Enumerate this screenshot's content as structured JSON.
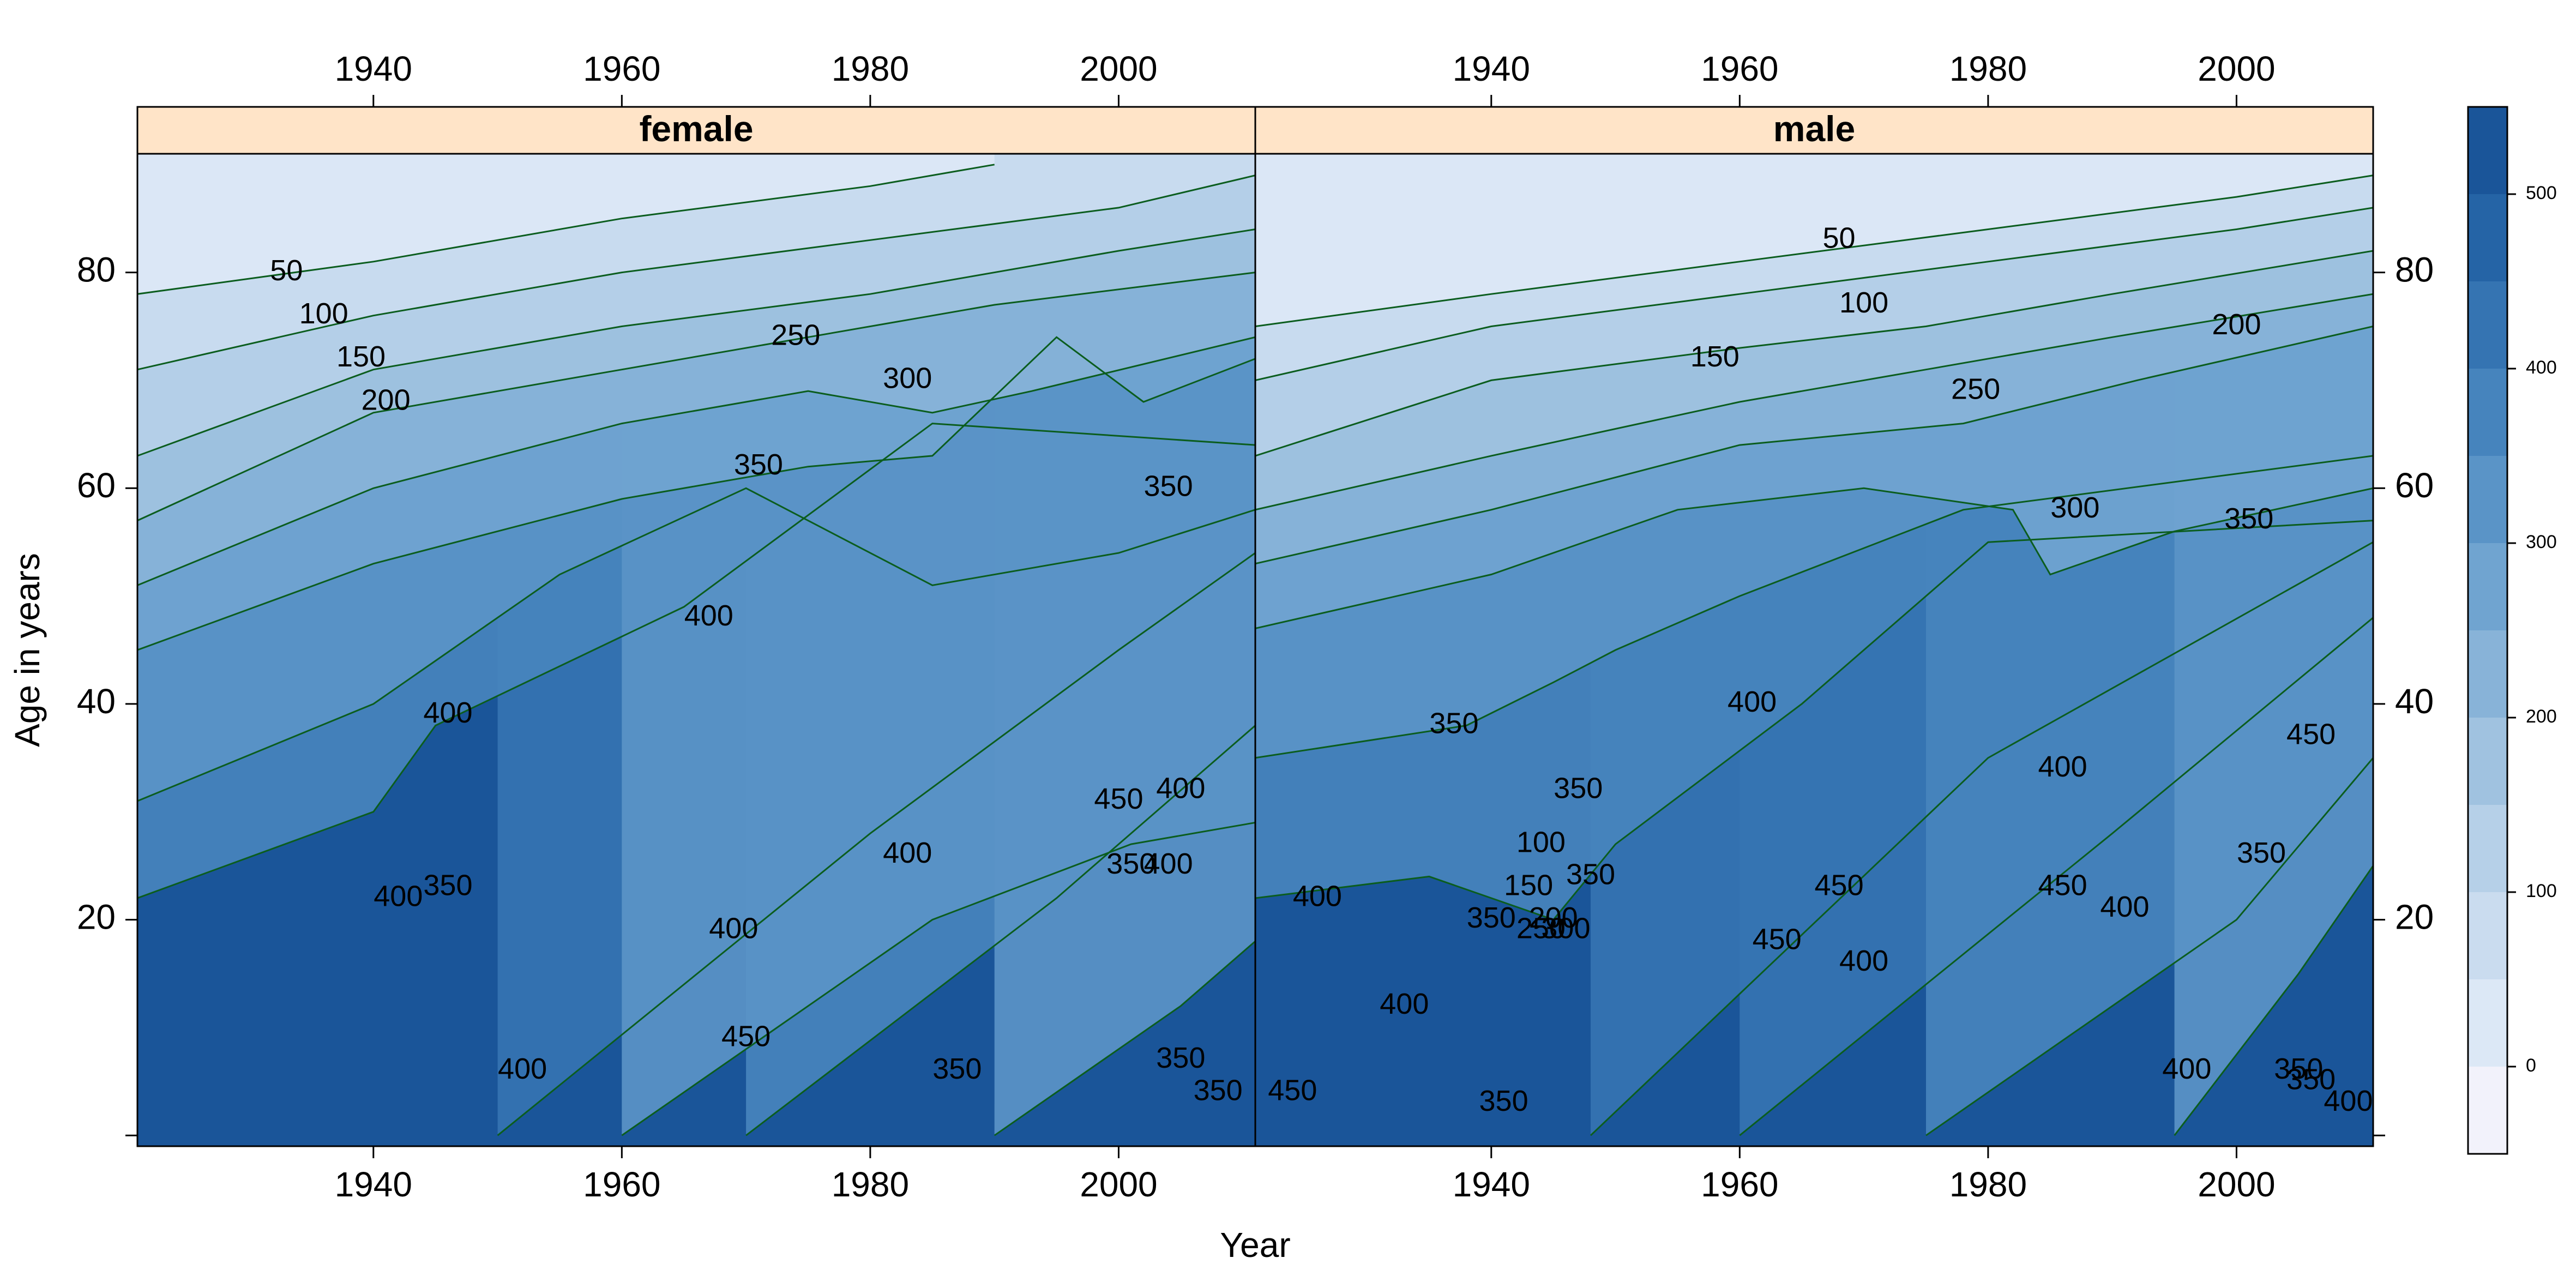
{
  "chart_data": {
    "type": "contour",
    "xlabel": "Year",
    "ylabel": "Age in years",
    "xlim": [
      1921,
      2011
    ],
    "ylim": [
      -1,
      91
    ],
    "x_ticks": [
      "1940",
      "1960",
      "1980",
      "2000"
    ],
    "x_tick_values": [
      1940,
      1960,
      1980,
      2000
    ],
    "y_ticks": [
      "20",
      "40",
      "60",
      "80"
    ],
    "y_tick_values": [
      20,
      40,
      60,
      80
    ],
    "colorbar": {
      "range": [
        -50,
        550
      ],
      "ticks": [
        "0",
        "100",
        "200",
        "300",
        "400",
        "500"
      ],
      "tick_values": [
        0,
        100,
        200,
        300,
        400,
        500
      ],
      "levels": [
        -50,
        0,
        50,
        100,
        150,
        200,
        250,
        300,
        350,
        400,
        450,
        500,
        550
      ],
      "colors": [
        "#f2f2fb",
        "#dce8f6",
        "#cadcef",
        "#b6d0e8",
        "#a0c2e0",
        "#88b3d8",
        "#70a4d0",
        "#5a94c7",
        "#4684bd",
        "#3574b2",
        "#2564a6",
        "#1a5599"
      ]
    },
    "panels": [
      {
        "strip": "female",
        "contour_lines": [
          {
            "level": 50,
            "points": [
              [
                1921,
                78
              ],
              [
                1940,
                81
              ],
              [
                1960,
                85
              ],
              [
                1980,
                88
              ],
              [
                1990,
                90
              ]
            ]
          },
          {
            "level": 100,
            "points": [
              [
                1921,
                71
              ],
              [
                1940,
                76
              ],
              [
                1960,
                80
              ],
              [
                1980,
                83
              ],
              [
                2000,
                86
              ],
              [
                2011,
                89
              ]
            ]
          },
          {
            "level": 150,
            "points": [
              [
                1921,
                63
              ],
              [
                1940,
                71
              ],
              [
                1960,
                75
              ],
              [
                1980,
                78
              ],
              [
                2000,
                82
              ],
              [
                2011,
                84
              ]
            ]
          },
          {
            "level": 200,
            "points": [
              [
                1921,
                57
              ],
              [
                1940,
                67
              ],
              [
                1960,
                71
              ],
              [
                1975,
                74
              ],
              [
                1990,
                77
              ],
              [
                2011,
                80
              ]
            ]
          },
          {
            "level": 250,
            "points": [
              [
                1921,
                51
              ],
              [
                1940,
                60
              ],
              [
                1960,
                66
              ],
              [
                1975,
                69
              ],
              [
                1985,
                67
              ],
              [
                1993,
                69
              ],
              [
                2011,
                74
              ]
            ]
          },
          {
            "level": 300,
            "points": [
              [
                1921,
                45
              ],
              [
                1940,
                53
              ],
              [
                1960,
                59
              ],
              [
                1975,
                62
              ],
              [
                1985,
                63
              ],
              [
                1995,
                74
              ],
              [
                2002,
                68
              ],
              [
                2011,
                72
              ]
            ]
          },
          {
            "level": 350,
            "points": [
              [
                1921,
                31
              ],
              [
                1940,
                40
              ],
              [
                1955,
                52
              ],
              [
                1970,
                60
              ],
              [
                1985,
                51
              ],
              [
                2000,
                54
              ],
              [
                2011,
                58
              ]
            ]
          },
          {
            "level": 400,
            "points": [
              [
                1921,
                22
              ],
              [
                1940,
                30
              ],
              [
                1945,
                38
              ],
              [
                1965,
                49
              ],
              [
                1985,
                66
              ],
              [
                2011,
                64
              ]
            ]
          },
          {
            "level": 450,
            "points": [
              [
                1950,
                0
              ],
              [
                1980,
                28
              ],
              [
                2000,
                45
              ],
              [
                2011,
                54
              ]
            ]
          },
          {
            "level": 350,
            "points": [
              [
                1960,
                0
              ],
              [
                1985,
                20
              ],
              [
                2001,
                27
              ],
              [
                2011,
                29
              ]
            ]
          },
          {
            "level": 400,
            "points": [
              [
                1970,
                0
              ],
              [
                1995,
                22
              ],
              [
                2011,
                38
              ]
            ]
          },
          {
            "level": 350,
            "points": [
              [
                1990,
                0
              ],
              [
                2005,
                12
              ],
              [
                2011,
                18
              ]
            ]
          }
        ],
        "contour_labels": [
          {
            "text": "50",
            "x": 1933,
            "y": 80
          },
          {
            "text": "100",
            "x": 1936,
            "y": 76
          },
          {
            "text": "150",
            "x": 1939,
            "y": 72
          },
          {
            "text": "200",
            "x": 1941,
            "y": 68
          },
          {
            "text": "250",
            "x": 1974,
            "y": 74
          },
          {
            "text": "300",
            "x": 1983,
            "y": 70
          },
          {
            "text": "350",
            "x": 1971,
            "y": 62
          },
          {
            "text": "350",
            "x": 2004,
            "y": 60
          },
          {
            "text": "400",
            "x": 1967,
            "y": 48
          },
          {
            "text": "400",
            "x": 1946,
            "y": 39
          },
          {
            "text": "400",
            "x": 1942,
            "y": 22
          },
          {
            "text": "350",
            "x": 1946,
            "y": 23
          },
          {
            "text": "400",
            "x": 1969,
            "y": 19
          },
          {
            "text": "400",
            "x": 1983,
            "y": 26
          },
          {
            "text": "450",
            "x": 2000,
            "y": 31
          },
          {
            "text": "400",
            "x": 2005,
            "y": 32
          },
          {
            "text": "350",
            "x": 2001,
            "y": 25
          },
          {
            "text": "400",
            "x": 2004,
            "y": 25
          },
          {
            "text": "450",
            "x": 1970,
            "y": 9
          },
          {
            "text": "400",
            "x": 1952,
            "y": 6
          },
          {
            "text": "350",
            "x": 1987,
            "y": 6
          },
          {
            "text": "350",
            "x": 2005,
            "y": 7
          },
          {
            "text": "350",
            "x": 2008,
            "y": 4
          }
        ]
      },
      {
        "strip": "male",
        "contour_lines": [
          {
            "level": 50,
            "points": [
              [
                1921,
                75
              ],
              [
                1940,
                78
              ],
              [
                1960,
                81
              ],
              [
                1980,
                84
              ],
              [
                2000,
                87
              ],
              [
                2011,
                89
              ]
            ]
          },
          {
            "level": 100,
            "points": [
              [
                1921,
                70
              ],
              [
                1940,
                75
              ],
              [
                1960,
                78
              ],
              [
                1980,
                81
              ],
              [
                2000,
                84
              ],
              [
                2011,
                86
              ]
            ]
          },
          {
            "level": 150,
            "points": [
              [
                1921,
                63
              ],
              [
                1940,
                70
              ],
              [
                1960,
                73
              ],
              [
                1975,
                75
              ],
              [
                1990,
                78
              ],
              [
                2011,
                82
              ]
            ]
          },
          {
            "level": 200,
            "points": [
              [
                1921,
                58
              ],
              [
                1940,
                63
              ],
              [
                1960,
                68
              ],
              [
                1975,
                71
              ],
              [
                1990,
                74
              ],
              [
                2011,
                78
              ]
            ]
          },
          {
            "level": 250,
            "points": [
              [
                1921,
                53
              ],
              [
                1940,
                58
              ],
              [
                1960,
                64
              ],
              [
                1978,
                66
              ],
              [
                1992,
                70
              ],
              [
                2011,
                75
              ]
            ]
          },
          {
            "level": 300,
            "points": [
              [
                1921,
                47
              ],
              [
                1940,
                52
              ],
              [
                1955,
                58
              ],
              [
                1970,
                60
              ],
              [
                1982,
                58
              ],
              [
                1985,
                52
              ],
              [
                1995,
                56
              ],
              [
                2011,
                60
              ]
            ]
          },
          {
            "level": 350,
            "points": [
              [
                1921,
                35
              ],
              [
                1938,
                38
              ],
              [
                1945,
                42
              ],
              [
                1950,
                45
              ],
              [
                1960,
                50
              ],
              [
                1978,
                58
              ],
              [
                2011,
                63
              ]
            ]
          },
          {
            "level": 400,
            "points": [
              [
                1921,
                22
              ],
              [
                1935,
                24
              ],
              [
                1945,
                20
              ],
              [
                1950,
                27
              ],
              [
                1965,
                40
              ],
              [
                1980,
                55
              ],
              [
                2011,
                57
              ]
            ]
          },
          {
            "level": 450,
            "points": [
              [
                1948,
                0
              ],
              [
                1980,
                35
              ],
              [
                2011,
                55
              ]
            ]
          },
          {
            "level": 450,
            "points": [
              [
                1960,
                0
              ],
              [
                1990,
                28
              ],
              [
                2011,
                48
              ]
            ]
          },
          {
            "level": 400,
            "points": [
              [
                1975,
                0
              ],
              [
                2000,
                20
              ],
              [
                2011,
                35
              ]
            ]
          },
          {
            "level": 350,
            "points": [
              [
                1995,
                0
              ],
              [
                2005,
                15
              ],
              [
                2011,
                25
              ]
            ]
          }
        ],
        "contour_labels": [
          {
            "text": "50",
            "x": 1968,
            "y": 83
          },
          {
            "text": "100",
            "x": 1970,
            "y": 77
          },
          {
            "text": "150",
            "x": 1958,
            "y": 72
          },
          {
            "text": "250",
            "x": 1979,
            "y": 69
          },
          {
            "text": "200",
            "x": 2000,
            "y": 75
          },
          {
            "text": "300",
            "x": 1987,
            "y": 58
          },
          {
            "text": "350",
            "x": 2001,
            "y": 57
          },
          {
            "text": "350",
            "x": 1937,
            "y": 38
          },
          {
            "text": "400",
            "x": 1961,
            "y": 40
          },
          {
            "text": "350",
            "x": 1947,
            "y": 32
          },
          {
            "text": "100",
            "x": 1944,
            "y": 27
          },
          {
            "text": "350",
            "x": 1948,
            "y": 24
          },
          {
            "text": "150",
            "x": 1943,
            "y": 23
          },
          {
            "text": "200",
            "x": 1945,
            "y": 20
          },
          {
            "text": "250",
            "x": 1944,
            "y": 19
          },
          {
            "text": "300",
            "x": 1946,
            "y": 19
          },
          {
            "text": "350",
            "x": 1940,
            "y": 20
          },
          {
            "text": "400",
            "x": 1926,
            "y": 22
          },
          {
            "text": "400",
            "x": 1933,
            "y": 12
          },
          {
            "text": "450",
            "x": 1924,
            "y": 4
          },
          {
            "text": "350",
            "x": 1941,
            "y": 3
          },
          {
            "text": "450",
            "x": 1968,
            "y": 23
          },
          {
            "text": "450",
            "x": 1963,
            "y": 18
          },
          {
            "text": "400",
            "x": 1970,
            "y": 16
          },
          {
            "text": "450",
            "x": 1986,
            "y": 23
          },
          {
            "text": "400",
            "x": 1986,
            "y": 34
          },
          {
            "text": "450",
            "x": 2006,
            "y": 37
          },
          {
            "text": "350",
            "x": 2002,
            "y": 26
          },
          {
            "text": "400",
            "x": 1991,
            "y": 21
          },
          {
            "text": "400",
            "x": 1996,
            "y": 6
          },
          {
            "text": "350",
            "x": 2005,
            "y": 6
          },
          {
            "text": "350",
            "x": 2006,
            "y": 5
          },
          {
            "text": "400",
            "x": 2009,
            "y": 3
          }
        ]
      }
    ]
  }
}
